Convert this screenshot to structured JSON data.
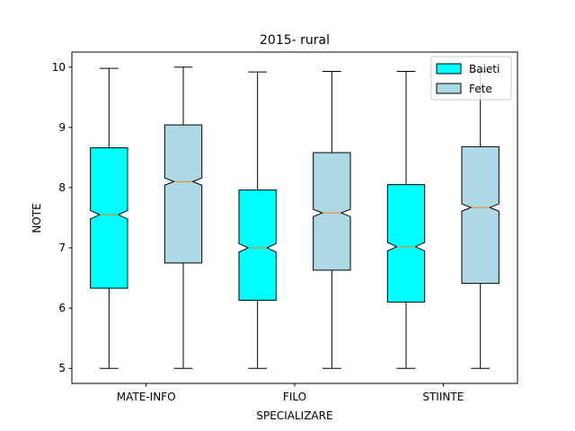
{
  "chart_data": {
    "type": "box",
    "title": "2015- rural",
    "xlabel": "SPECIALIZARE",
    "ylabel": "NOTE",
    "ylim": [
      4.75,
      10.25
    ],
    "yticks": [
      5,
      6,
      7,
      8,
      9,
      10
    ],
    "categories": [
      "MATE-INFO",
      "FILO",
      "STIINTE"
    ],
    "legend_position": "top-right",
    "grid": false,
    "notched": true,
    "series": [
      {
        "name": "Baieti",
        "color": "#00ffff",
        "boxes": [
          {
            "min": 5.0,
            "q1": 6.33,
            "median": 7.55,
            "q3": 8.66,
            "max": 9.98,
            "notch": [
              7.48,
              7.62
            ]
          },
          {
            "min": 5.0,
            "q1": 6.13,
            "median": 7.0,
            "q3": 7.96,
            "max": 9.92,
            "notch": [
              6.93,
              7.07
            ]
          },
          {
            "min": 5.0,
            "q1": 6.1,
            "median": 7.02,
            "q3": 8.05,
            "max": 9.93,
            "notch": [
              6.95,
              7.09
            ]
          }
        ]
      },
      {
        "name": "Fete",
        "color": "#add8e6",
        "boxes": [
          {
            "min": 5.0,
            "q1": 6.75,
            "median": 8.1,
            "q3": 9.04,
            "max": 10.0,
            "notch": [
              8.04,
              8.16
            ]
          },
          {
            "min": 5.0,
            "q1": 6.63,
            "median": 7.58,
            "q3": 8.58,
            "max": 9.93,
            "notch": [
              7.52,
              7.64
            ]
          },
          {
            "min": 5.0,
            "q1": 6.41,
            "median": 7.67,
            "q3": 8.68,
            "max": 9.93,
            "notch": [
              7.61,
              7.73
            ]
          }
        ]
      }
    ],
    "median_color": "#ff7f0e"
  }
}
